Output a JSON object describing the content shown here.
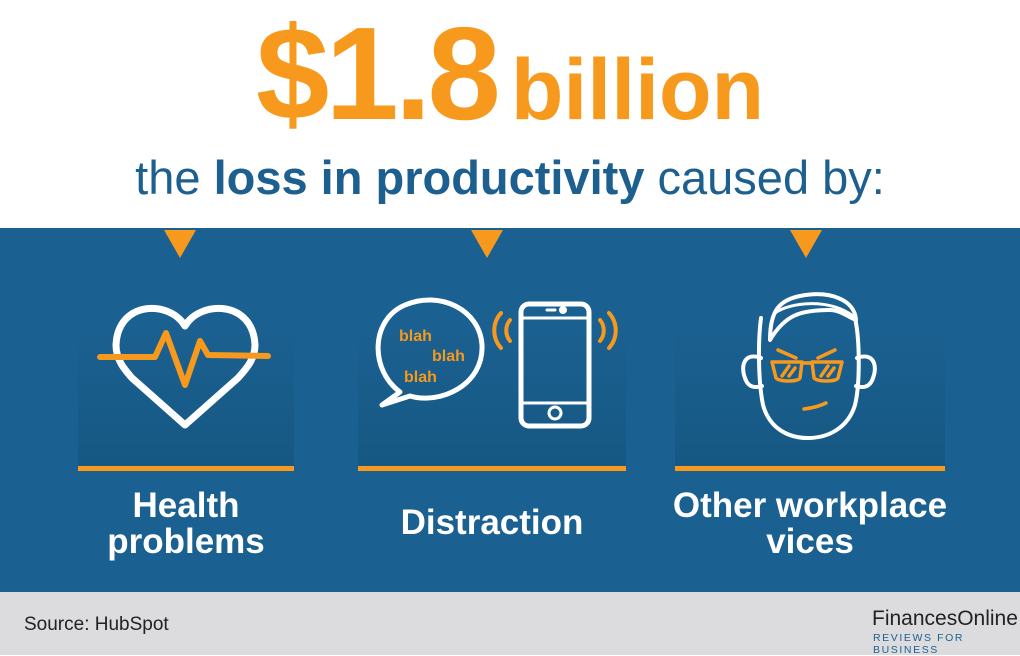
{
  "headline": {
    "amount": "$1.8",
    "unit": "billion"
  },
  "subtitle": {
    "pre": "the ",
    "bold": "loss in productivity",
    "post": " caused by:"
  },
  "causes": [
    {
      "line1": "Health",
      "line2": "problems",
      "icon": "heart-pulse-icon"
    },
    {
      "line1": "Distraction",
      "icon": "chat-and-phone-icon",
      "bubble": [
        "blah",
        "blah",
        "blah"
      ]
    },
    {
      "line1": "Other workplace",
      "line2": "vices",
      "icon": "face-with-sunglasses-icon"
    }
  ],
  "footer": {
    "source": "Source: HubSpot",
    "brand": "FinancesOnline",
    "tagline": "REVIEWS FOR BUSINESS"
  },
  "colors": {
    "orange": "#f7991c",
    "blue": "#1a6090",
    "title_blue": "#1d5f8e",
    "footer_gray": "#dcdcdf"
  }
}
